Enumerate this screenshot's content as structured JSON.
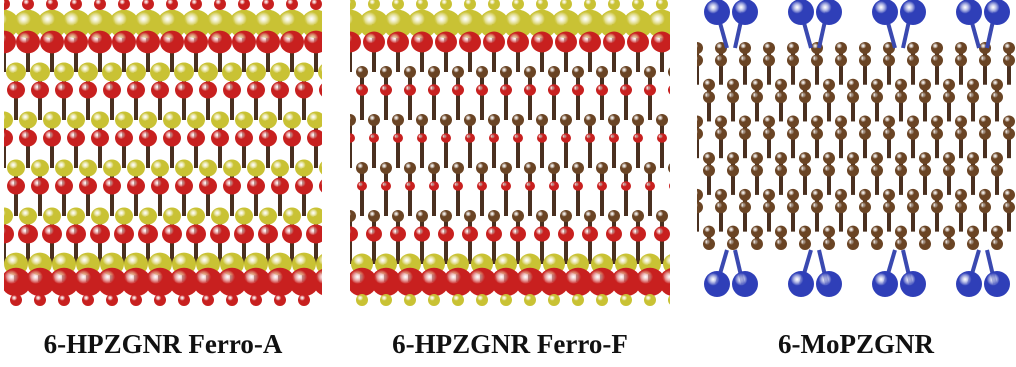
{
  "figure": {
    "panels": [
      {
        "id": "ferro-a",
        "caption": "6-HPZGNR Ferro-A"
      },
      {
        "id": "ferro-f",
        "caption": "6-HPZGNR Ferro-F"
      },
      {
        "id": "mo",
        "caption": "6-MoPZGNR"
      }
    ]
  },
  "colors": {
    "red_lobe": "#c8201f",
    "yellow_lobe": "#c9c234",
    "carbon": "#6a4424",
    "bond": "#4a3020",
    "mo_atom": "#2f3fb8",
    "mo_bond": "#3a49b0"
  }
}
